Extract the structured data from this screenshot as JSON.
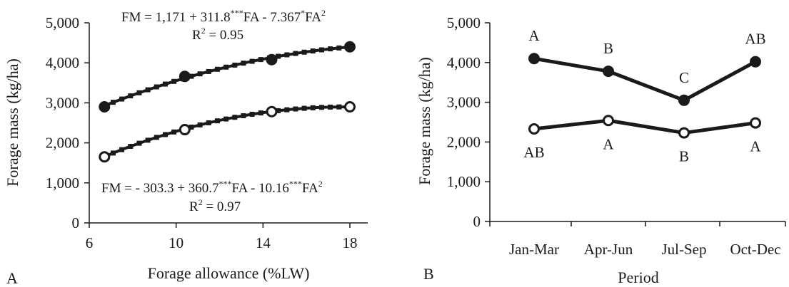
{
  "chart_data": [
    {
      "panel_label": "A",
      "type": "line",
      "xlabel": "Forage allowance (%LW)",
      "ylabel": "Forage mass (kg/ha)",
      "xlim": [
        6,
        18
      ],
      "ylim": [
        0,
        5000
      ],
      "x_ticks": [
        "6",
        "10",
        "14",
        "18"
      ],
      "y_ticks": [
        "0",
        "1,000",
        "2,000",
        "3,000",
        "4,000",
        "5,000"
      ],
      "x_tick_values": [
        6,
        10,
        14,
        18
      ],
      "y_tick_values": [
        0,
        1000,
        2000,
        3000,
        4000,
        5000
      ],
      "series": [
        {
          "marker": "filled-circle",
          "points": [
            [
              6.7,
              2900
            ],
            [
              10.4,
              3660
            ],
            [
              14.4,
              4080
            ],
            [
              18,
              4400
            ]
          ],
          "fit": {
            "a": 1171,
            "b": 311.8,
            "c": -7.367
          },
          "equation": {
            "lhs": "FM = 1,171 + 311.8",
            "sup1": "***",
            "mid": "FA - 7.367",
            "sup2": "*",
            "rhs": "FA",
            "sup3": "2"
          },
          "r2": {
            "base": "R",
            "sup": "2",
            "value": " = 0.95"
          }
        },
        {
          "marker": "open-circle",
          "points": [
            [
              6.7,
              1650
            ],
            [
              10.4,
              2330
            ],
            [
              14.4,
              2780
            ],
            [
              18,
              2900
            ]
          ],
          "fit": {
            "a": -303.3,
            "b": 360.7,
            "c": -10.16
          },
          "equation": {
            "lhs": "FM = - 303.3 + 360.7",
            "sup1": "***",
            "mid": "FA - 10.16",
            "sup2": "***",
            "rhs": "FA",
            "sup3": "2"
          },
          "r2": {
            "base": "R",
            "sup": "2",
            "value": " = 0.97"
          }
        }
      ]
    },
    {
      "panel_label": "B",
      "type": "line",
      "xlabel": "Period",
      "ylabel": "Forage mass (kg/ha)",
      "ylim": [
        0,
        5000
      ],
      "categories": [
        "Jan-Mar",
        "Apr-Jun",
        "Jul-Sep",
        "Oct-Dec"
      ],
      "y_ticks": [
        "0",
        "1,000",
        "2,000",
        "3,000",
        "4,000",
        "5,000"
      ],
      "y_tick_values": [
        0,
        1000,
        2000,
        3000,
        4000,
        5000
      ],
      "series": [
        {
          "marker": "filled-circle",
          "values": [
            4100,
            3780,
            3050,
            4020
          ],
          "letters": [
            "A",
            "B",
            "C",
            "AB"
          ]
        },
        {
          "marker": "open-circle",
          "values": [
            2330,
            2540,
            2230,
            2480
          ],
          "letters": [
            "AB",
            "A",
            "B",
            "A"
          ]
        }
      ]
    }
  ]
}
